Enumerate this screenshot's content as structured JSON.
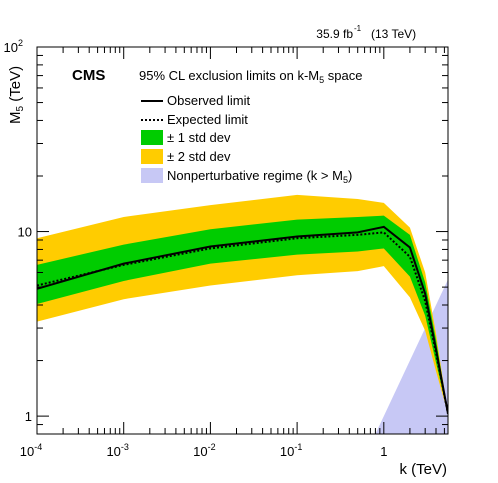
{
  "chart_data": {
    "type": "line",
    "lumi_label": "35.9 fb",
    "lumi_unit_sup": "-1",
    "energy_label": "(13 TeV)",
    "experiment": "CMS",
    "title": "95% CL exclusion limits on k-M",
    "title_sub": "5",
    "title_suffix": " space",
    "ylabel": "M",
    "ylabel_sub": "5",
    "ylabel_unit": " (TeV)",
    "xlabel": "k (TeV)",
    "xscale": "log",
    "yscale": "log",
    "xlim": [
      0.0001,
      5.5
    ],
    "ylim": [
      0.8,
      100
    ],
    "x_ticks": [
      {
        "value": 0.0001,
        "base": "10",
        "exp": "-4"
      },
      {
        "value": 0.001,
        "base": "10",
        "exp": "-3"
      },
      {
        "value": 0.01,
        "base": "10",
        "exp": "-2"
      },
      {
        "value": 0.1,
        "base": "10",
        "exp": "-1"
      },
      {
        "value": 1,
        "base": "1",
        "exp": ""
      }
    ],
    "y_ticks": [
      {
        "value": 1,
        "base": "1",
        "exp": ""
      },
      {
        "value": 10,
        "base": "10",
        "exp": ""
      },
      {
        "value": 100,
        "base": "10",
        "exp": "2"
      }
    ],
    "legend": [
      {
        "key": "observed",
        "label": "Observed limit"
      },
      {
        "key": "expected",
        "label": "Expected limit"
      },
      {
        "key": "band1",
        "label": "± 1 std dev"
      },
      {
        "key": "band2",
        "label": "± 2 std dev"
      },
      {
        "key": "nonpert",
        "label": "Nonperturbative regime (k > M",
        "sub": "5",
        "suffix": ")"
      }
    ],
    "colors": {
      "observed": "#000000",
      "expected": "#000000",
      "band1": "#00cc00",
      "band2": "#ffcc00",
      "nonpert": "#c7c8f5"
    },
    "x": [
      0.0001,
      0.001,
      0.01,
      0.1,
      0.5,
      1.0,
      2.0,
      3.0,
      4.0,
      5.5
    ],
    "series": [
      {
        "key": "observed",
        "values": [
          4.9,
          6.7,
          8.3,
          9.4,
          9.9,
          10.6,
          8.2,
          4.6,
          2.3,
          1.03
        ]
      },
      {
        "key": "expected",
        "values": [
          5.1,
          6.6,
          8.1,
          9.2,
          9.6,
          9.9,
          7.3,
          4.2,
          2.2,
          1.03
        ]
      }
    ],
    "band1": {
      "low": [
        4.05,
        5.4,
        6.7,
        7.5,
        7.8,
        8.1,
        5.7,
        3.5,
        1.95,
        1.03
      ],
      "high": [
        6.6,
        8.5,
        10.3,
        11.6,
        12.0,
        12.2,
        9.6,
        5.3,
        2.6,
        1.03
      ]
    },
    "band2": {
      "low": [
        3.25,
        4.3,
        5.1,
        5.8,
        6.1,
        6.5,
        4.4,
        2.9,
        1.75,
        1.03
      ],
      "high": [
        9.2,
        12.0,
        13.9,
        15.8,
        15.0,
        14.3,
        10.5,
        6.0,
        2.8,
        1.03
      ]
    },
    "nonperturbative_region": "k > M5"
  }
}
